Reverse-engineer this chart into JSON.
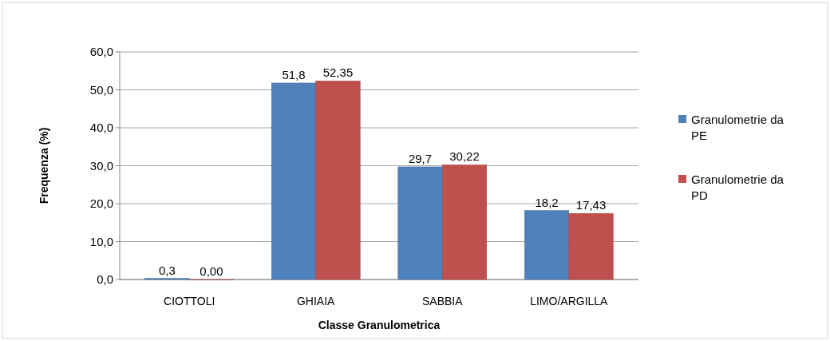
{
  "chart_data": {
    "type": "bar",
    "xlabel": "Classe Granulometrica",
    "ylabel": "Frequenza (%)",
    "categories": [
      "CIOTTOLI",
      "GHIAIA",
      "SABBIA",
      "LIMO/ARGILLA"
    ],
    "series": [
      {
        "name": "Granulometrie da PE",
        "color": "#4f81bd",
        "values": [
          0.3,
          51.8,
          29.7,
          18.2
        ],
        "value_labels": [
          "0,3",
          "51,8",
          "29,7",
          "18,2"
        ]
      },
      {
        "name": "Granulometrie da PD",
        "color": "#c0504d",
        "values": [
          0.0,
          52.35,
          30.22,
          17.43
        ],
        "value_labels": [
          "0,00",
          "52,35",
          "30,22",
          "17,43"
        ]
      }
    ],
    "ylim": [
      0,
      60
    ],
    "yticks": [
      {
        "value": 0,
        "label": "0,0"
      },
      {
        "value": 10,
        "label": "10,0"
      },
      {
        "value": 20,
        "label": "20,0"
      },
      {
        "value": 30,
        "label": "30,0"
      },
      {
        "value": 40,
        "label": "40,0"
      },
      {
        "value": 50,
        "label": "50,0"
      },
      {
        "value": 60,
        "label": "60,0"
      }
    ],
    "grid": "y",
    "legend": "right"
  }
}
